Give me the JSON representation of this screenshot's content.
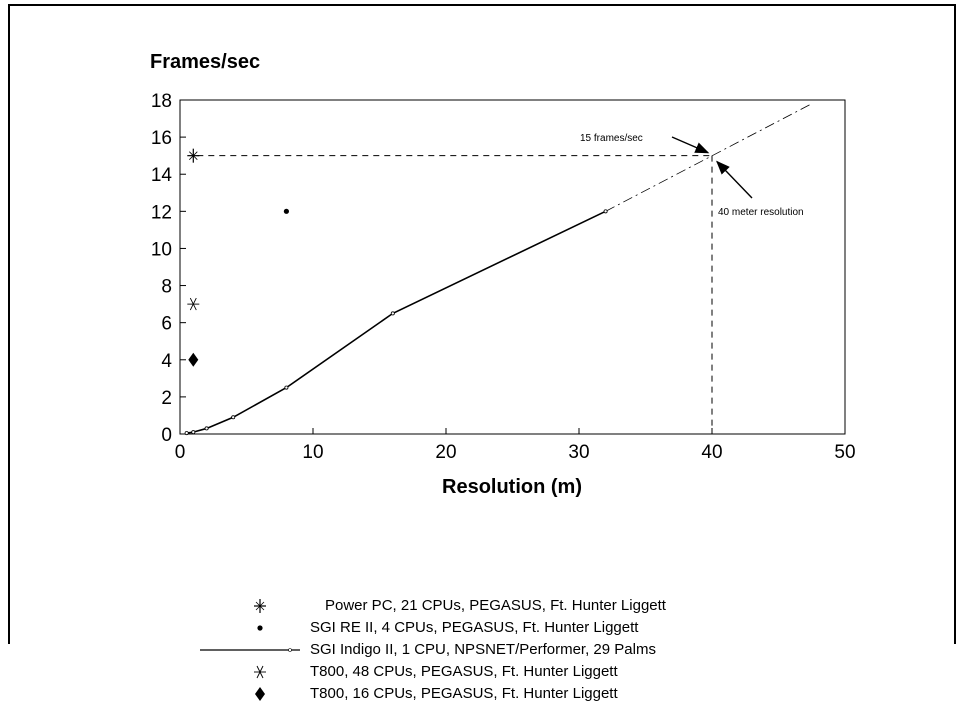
{
  "chart_data": {
    "type": "scatter",
    "title": "Frames/sec",
    "xlabel": "Resolution (m)",
    "ylabel": "Frames/sec",
    "xlim": [
      0,
      50
    ],
    "ylim": [
      0,
      18
    ],
    "xticks": [
      "0",
      "10",
      "20",
      "30",
      "40",
      "50"
    ],
    "yticks": [
      "0",
      "2",
      "4",
      "6",
      "8",
      "10",
      "12",
      "14",
      "16",
      "18"
    ],
    "grid": false,
    "series": [
      {
        "name": "Power PC, 21 CPUs, PEGASUS, Ft. Hunter Liggett",
        "marker": "plus-star",
        "points": [
          [
            1,
            15
          ]
        ]
      },
      {
        "name": "SGI RE II, 4 CPUs, PEGASUS, Ft. Hunter Liggett",
        "marker": "dot",
        "points": [
          [
            8,
            12
          ]
        ]
      },
      {
        "name": "SGI Indigo II, 1 CPU, NPSNET/Performer, 29 Palms",
        "marker": "line",
        "points": [
          [
            0.5,
            0.05
          ],
          [
            1,
            0.1
          ],
          [
            2,
            0.3
          ],
          [
            4,
            0.9
          ],
          [
            8,
            2.5
          ],
          [
            16,
            6.5
          ],
          [
            32,
            12
          ]
        ]
      },
      {
        "name": "T800, 48 CPUs, PEGASUS, Ft. Hunter Liggett",
        "marker": "asterisk",
        "points": [
          [
            1,
            7
          ]
        ]
      },
      {
        "name": "T800, 16 CPUs, PEGASUS, Ft. Hunter Liggett",
        "marker": "diamond",
        "points": [
          [
            1,
            4
          ]
        ]
      }
    ],
    "extrapolation": {
      "style": "dash-dot",
      "points": [
        [
          32,
          12
        ],
        [
          47.5,
          17.8
        ]
      ]
    },
    "reference_lines": {
      "x": 40,
      "y": 15
    },
    "annotations": [
      {
        "text": "15 frames/sec",
        "arrow_to": [
          40,
          15
        ]
      },
      {
        "text": "40 meter resolution",
        "arrow_to": [
          40,
          15
        ]
      }
    ],
    "legend_position": "bottom"
  }
}
